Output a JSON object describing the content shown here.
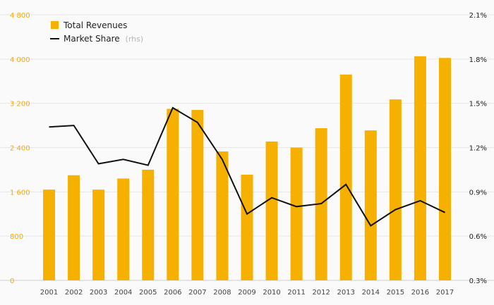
{
  "chart_data": {
    "type": "bar",
    "categories": [
      "2001",
      "2002",
      "2003",
      "2004",
      "2005",
      "2006",
      "2007",
      "2008",
      "2009",
      "2010",
      "2011",
      "2012",
      "2013",
      "2014",
      "2015",
      "2016",
      "2017"
    ],
    "series": [
      {
        "name": "Total Revenues",
        "type": "bar",
        "axis": "left",
        "color": "#f5b000",
        "values": [
          1640,
          1900,
          1640,
          1840,
          2000,
          3100,
          3080,
          2330,
          1910,
          2510,
          2400,
          2750,
          3720,
          2710,
          3270,
          4050,
          4020
        ]
      },
      {
        "name": "Market Share",
        "axis_note": "(rhs)",
        "type": "line",
        "axis": "right",
        "color": "#111111",
        "values": [
          1.34,
          1.35,
          1.09,
          1.12,
          1.08,
          1.47,
          1.37,
          1.12,
          0.75,
          0.86,
          0.8,
          0.82,
          0.95,
          0.67,
          0.78,
          0.84,
          0.76
        ]
      }
    ],
    "y_left": {
      "ylim": [
        0,
        4800
      ],
      "ticks": [
        "0",
        "800",
        "1 600",
        "2 400",
        "3 200",
        "4 000",
        "4 800"
      ],
      "tick_values": [
        0,
        800,
        1600,
        2400,
        3200,
        4000,
        4800
      ]
    },
    "y_right": {
      "ylim": [
        0.3,
        2.1
      ],
      "ticks": [
        "0.3%",
        "0.6%",
        "0.9%",
        "1.2%",
        "1.5%",
        "1.8%",
        "2.1%"
      ],
      "tick_values": [
        0.3,
        0.6,
        0.9,
        1.2,
        1.5,
        1.8,
        2.1
      ]
    },
    "grid": true,
    "legend_position": "top-left",
    "title": "",
    "xlabel": "",
    "ylabel": ""
  }
}
